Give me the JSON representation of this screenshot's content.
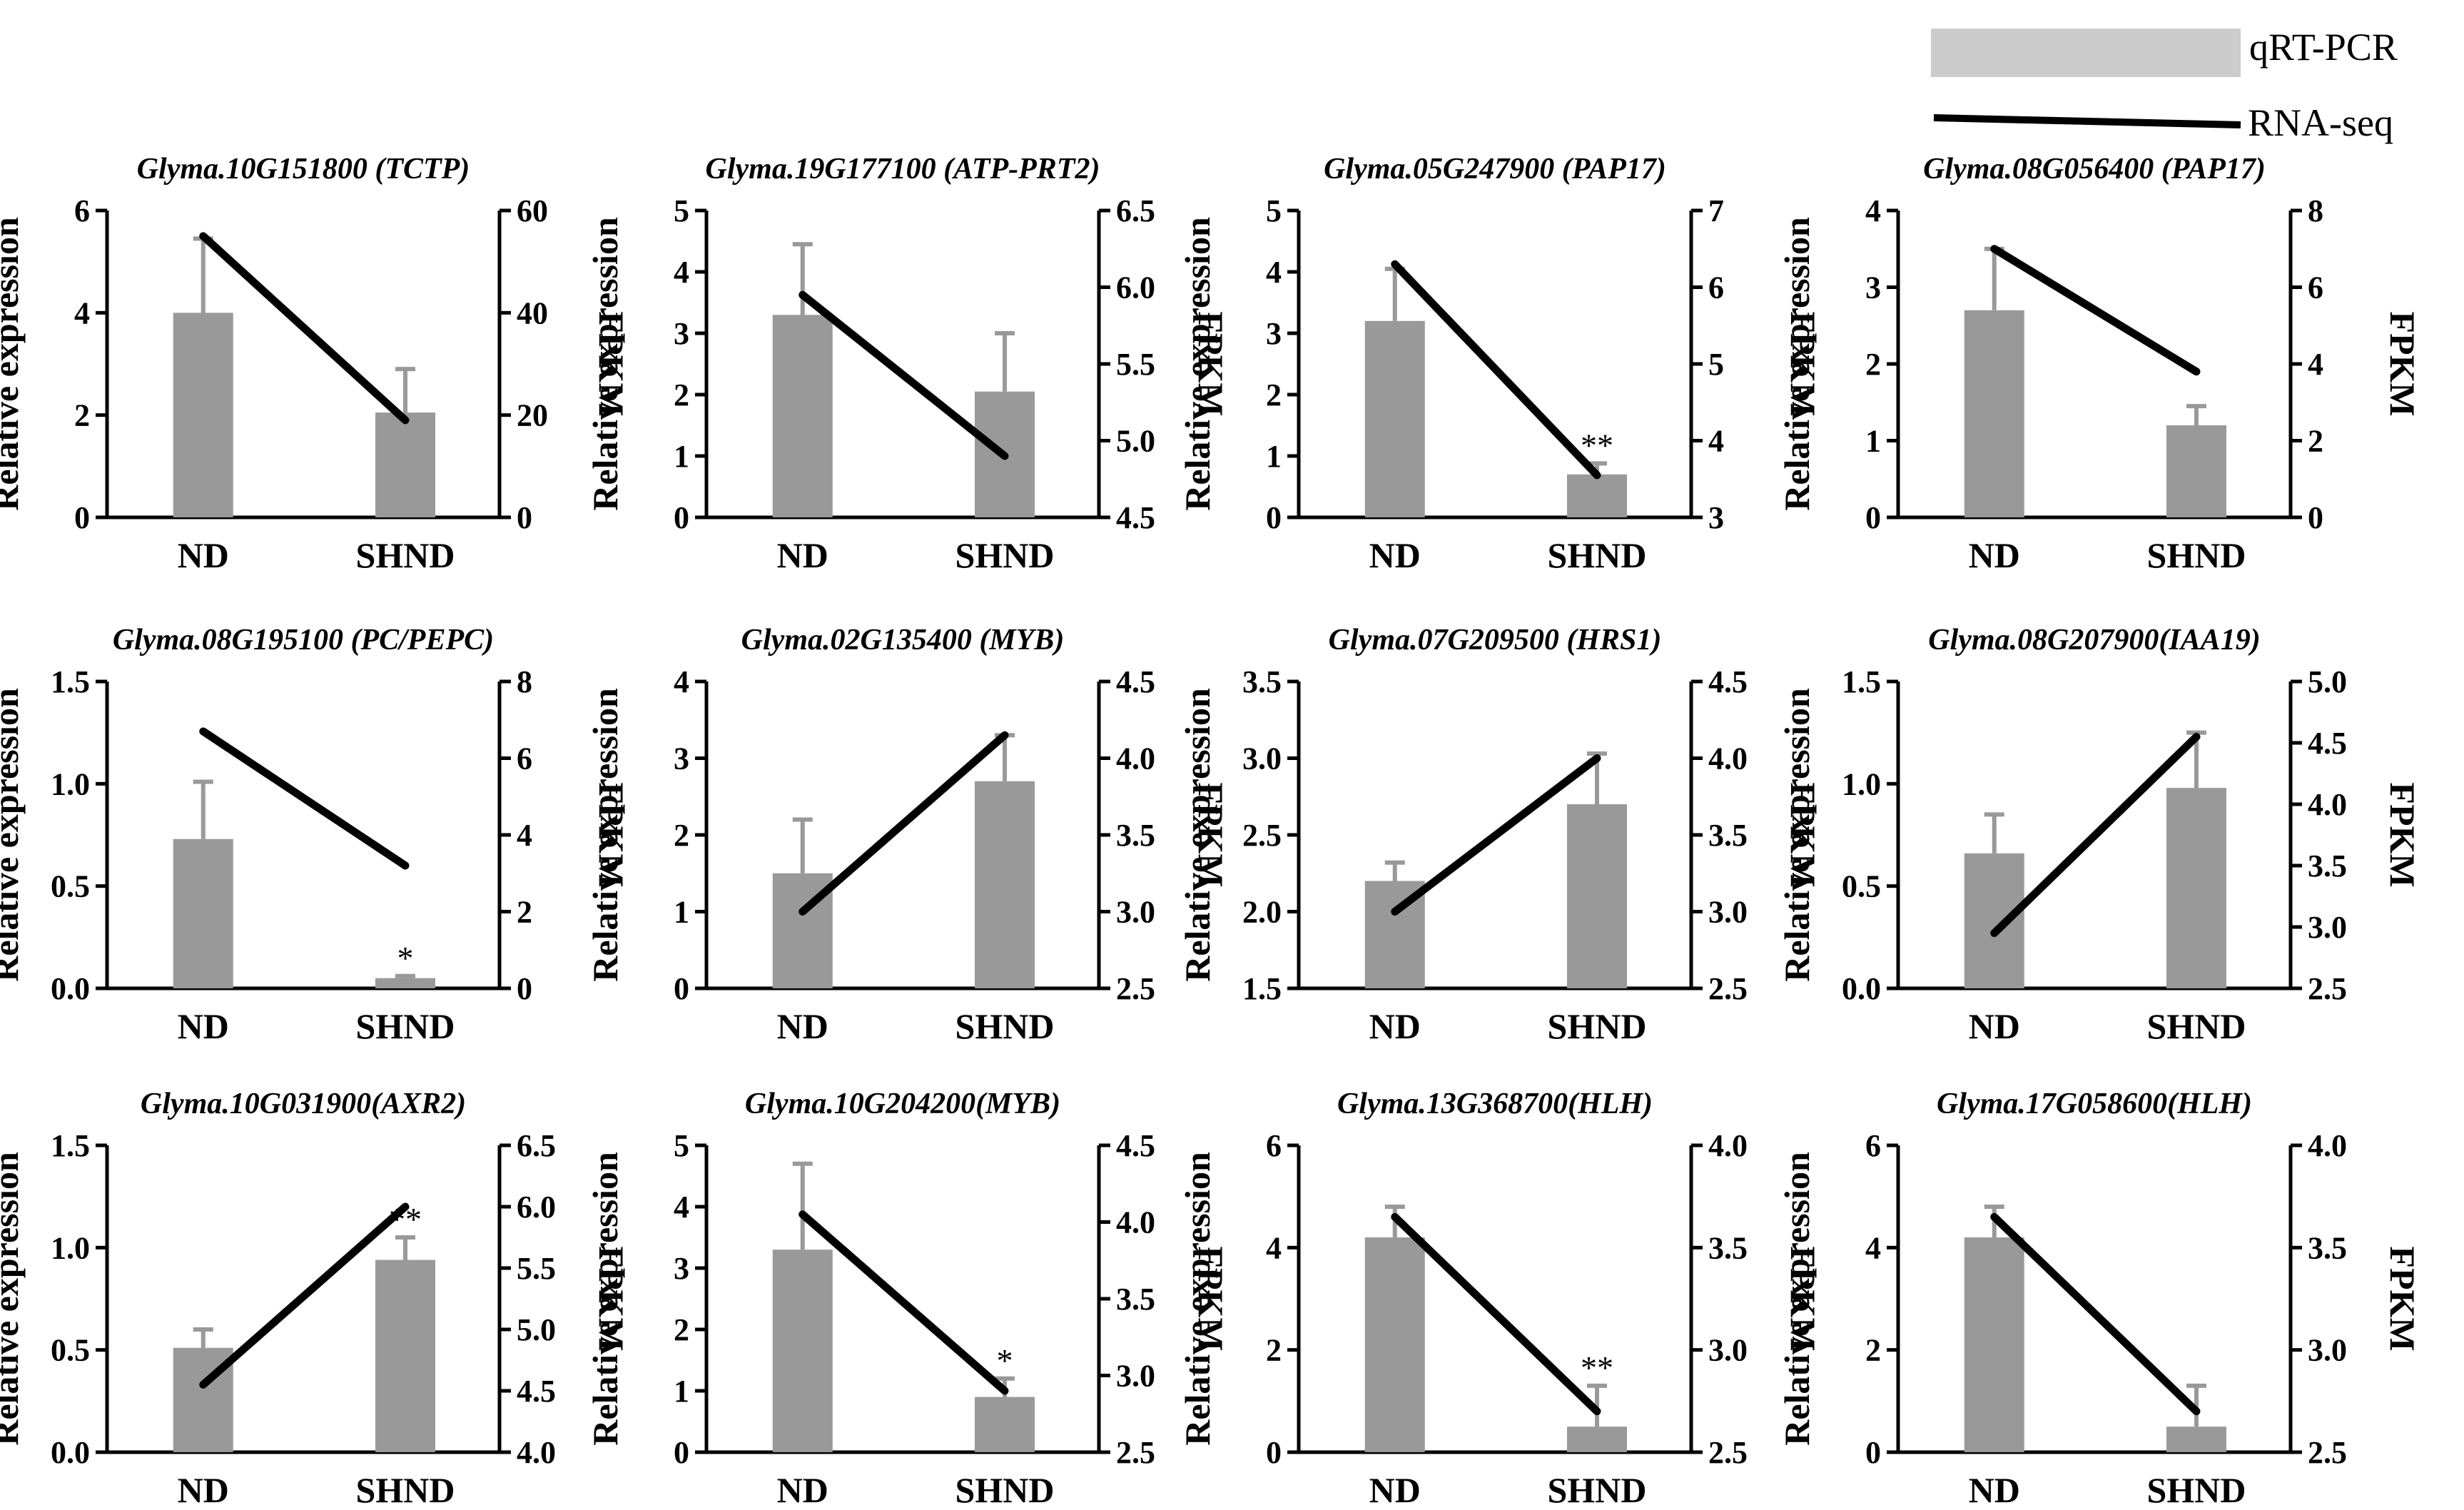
{
  "legend": {
    "qpcr_label": "qRT-PCR",
    "rnaseq_label": "RNA-seq",
    "bar_color": "#999999",
    "legend_bar_color": "#cccccc",
    "line_color": "#000000"
  },
  "chart_data": [
    {
      "type": "bar",
      "title": "Glyma.10G151800 (TCTP)",
      "categories": [
        "ND",
        "SHND"
      ],
      "ylabel": "Relative expression",
      "y2label": "FPKM",
      "ylim": [
        0,
        6
      ],
      "yticks": [
        "0",
        "2",
        "4",
        "6"
      ],
      "y2lim": [
        0,
        60
      ],
      "y2ticks": [
        "0",
        "20",
        "40",
        "60"
      ],
      "values": [
        4.0,
        2.05
      ],
      "errors": [
        1.45,
        0.85
      ],
      "fpkm": [
        55,
        19
      ],
      "sig": [
        "",
        ""
      ]
    },
    {
      "type": "bar",
      "title": "Glyma.19G177100 (ATP-PRT2)",
      "categories": [
        "ND",
        "SHND"
      ],
      "ylabel": "Relative expression",
      "y2label": "FPKM",
      "ylim": [
        0,
        5
      ],
      "yticks": [
        "0",
        "1",
        "2",
        "3",
        "4",
        "5"
      ],
      "y2lim": [
        4.5,
        6.5
      ],
      "y2ticks": [
        "4.5",
        "5.0",
        "5.5",
        "6.0",
        "6.5"
      ],
      "values": [
        3.3,
        2.05
      ],
      "errors": [
        1.15,
        0.95
      ],
      "fpkm": [
        5.95,
        4.9
      ],
      "sig": [
        "",
        ""
      ]
    },
    {
      "type": "bar",
      "title": "Glyma.05G247900 (PAP17)",
      "categories": [
        "ND",
        "SHND"
      ],
      "ylabel": "Relative expression",
      "y2label": "FPKM",
      "ylim": [
        0,
        5
      ],
      "yticks": [
        "0",
        "1",
        "2",
        "3",
        "4",
        "5"
      ],
      "y2lim": [
        3,
        7
      ],
      "y2ticks": [
        "3",
        "4",
        "5",
        "6",
        "7"
      ],
      "values": [
        3.2,
        0.7
      ],
      "errors": [
        0.85,
        0.18
      ],
      "fpkm": [
        6.3,
        3.55
      ],
      "sig": [
        "",
        "**"
      ]
    },
    {
      "type": "bar",
      "title": "Glyma.08G056400 (PAP17)",
      "categories": [
        "ND",
        "SHND"
      ],
      "ylabel": "Relative expression",
      "y2label": "FPKM",
      "ylim": [
        0,
        4
      ],
      "yticks": [
        "0",
        "1",
        "2",
        "3",
        "4"
      ],
      "y2lim": [
        0,
        8
      ],
      "y2ticks": [
        "0",
        "2",
        "4",
        "6",
        "8"
      ],
      "values": [
        2.7,
        1.2
      ],
      "errors": [
        0.8,
        0.25
      ],
      "fpkm": [
        7.0,
        3.8
      ],
      "sig": [
        "",
        ""
      ]
    },
    {
      "type": "bar",
      "title": "Glyma.08G195100 (PC/PEPC)",
      "categories": [
        "ND",
        "SHND"
      ],
      "ylabel": "Relative expression",
      "y2label": "FPKM",
      "ylim": [
        0,
        1.5
      ],
      "yticks": [
        "0.0",
        "0.5",
        "1.0",
        "1.5"
      ],
      "y2lim": [
        0,
        8
      ],
      "y2ticks": [
        "0",
        "2",
        "4",
        "6",
        "8"
      ],
      "values": [
        0.73,
        0.05
      ],
      "errors": [
        0.28,
        0.01
      ],
      "fpkm": [
        6.7,
        3.2
      ],
      "sig": [
        "",
        "*"
      ]
    },
    {
      "type": "bar",
      "title": "Glyma.02G135400 (MYB)",
      "categories": [
        "ND",
        "SHND"
      ],
      "ylabel": "Relative expression",
      "y2label": "FPKM",
      "ylim": [
        0,
        4
      ],
      "yticks": [
        "0",
        "1",
        "2",
        "3",
        "4"
      ],
      "y2lim": [
        2.5,
        4.5
      ],
      "y2ticks": [
        "2.5",
        "3.0",
        "3.5",
        "4.0",
        "4.5"
      ],
      "values": [
        1.5,
        2.7
      ],
      "errors": [
        0.7,
        0.6
      ],
      "fpkm": [
        3.0,
        4.15
      ],
      "sig": [
        "",
        ""
      ]
    },
    {
      "type": "bar",
      "title": "Glyma.07G209500 (HRS1)",
      "categories": [
        "ND",
        "SHND"
      ],
      "ylabel": "Relative expression",
      "y2label": "FPKM",
      "ylim": [
        1.5,
        3.5
      ],
      "yticks": [
        "1.5",
        "2.0",
        "2.5",
        "3.0",
        "3.5"
      ],
      "y2lim": [
        2.5,
        4.5
      ],
      "y2ticks": [
        "2.5",
        "3.0",
        "3.5",
        "4.0",
        "4.5"
      ],
      "values": [
        2.2,
        2.7
      ],
      "errors": [
        0.12,
        0.33
      ],
      "fpkm": [
        3.0,
        4.0
      ],
      "sig": [
        "",
        ""
      ]
    },
    {
      "type": "bar",
      "title": "Glyma.08G207900(IAA19)",
      "categories": [
        "ND",
        "SHND"
      ],
      "ylabel": "Relative expression",
      "y2label": "FPKM",
      "ylim": [
        0,
        1.5
      ],
      "yticks": [
        "0.0",
        "0.5",
        "1.0",
        "1.5"
      ],
      "y2lim": [
        2.5,
        5.0
      ],
      "y2ticks": [
        "2.5",
        "3.0",
        "3.5",
        "4.0",
        "4.5",
        "5.0"
      ],
      "values": [
        0.66,
        0.98
      ],
      "errors": [
        0.19,
        0.27
      ],
      "fpkm": [
        2.95,
        4.55
      ],
      "sig": [
        "",
        ""
      ]
    },
    {
      "type": "bar",
      "title": "Glyma.10G031900(AXR2)",
      "categories": [
        "ND",
        "SHND"
      ],
      "ylabel": "Relative expression",
      "y2label": "FPKM",
      "ylim": [
        0,
        1.5
      ],
      "yticks": [
        "0.0",
        "0.5",
        "1.0",
        "1.5"
      ],
      "y2lim": [
        4.0,
        6.5
      ],
      "y2ticks": [
        "4.0",
        "4.5",
        "5.0",
        "5.5",
        "6.0",
        "6.5"
      ],
      "values": [
        0.51,
        0.94
      ],
      "errors": [
        0.09,
        0.11
      ],
      "fpkm": [
        4.55,
        6.0
      ],
      "sig": [
        "",
        "**"
      ]
    },
    {
      "type": "bar",
      "title": "Glyma.10G204200(MYB)",
      "categories": [
        "ND",
        "SHND"
      ],
      "ylabel": "Relative expression",
      "y2label": "FPKM",
      "ylim": [
        0,
        5
      ],
      "yticks": [
        "0",
        "1",
        "2",
        "3",
        "4",
        "5"
      ],
      "y2lim": [
        2.5,
        4.5
      ],
      "y2ticks": [
        "2.5",
        "3.0",
        "3.5",
        "4.0",
        "4.5"
      ],
      "values": [
        3.3,
        0.9
      ],
      "errors": [
        1.4,
        0.3
      ],
      "fpkm": [
        4.05,
        2.9
      ],
      "sig": [
        "",
        "*"
      ]
    },
    {
      "type": "bar",
      "title": "Glyma.13G368700(HLH)",
      "categories": [
        "ND",
        "SHND"
      ],
      "ylabel": "Relative expression",
      "y2label": "FPKM",
      "ylim": [
        0,
        6
      ],
      "yticks": [
        "0",
        "2",
        "4",
        "6"
      ],
      "y2lim": [
        2.5,
        4.0
      ],
      "y2ticks": [
        "2.5",
        "3.0",
        "3.5",
        "4.0"
      ],
      "values": [
        4.2,
        0.5
      ],
      "errors": [
        0.6,
        0.8
      ],
      "fpkm": [
        3.65,
        2.7
      ],
      "sig": [
        "",
        "**"
      ]
    },
    {
      "type": "bar",
      "title": "Glyma.17G058600(HLH)",
      "categories": [
        "ND",
        "SHND"
      ],
      "ylabel": "Relative expression",
      "y2label": "FPKM",
      "ylim": [
        0,
        6
      ],
      "yticks": [
        "0",
        "2",
        "4",
        "6"
      ],
      "y2lim": [
        2.5,
        4.0
      ],
      "y2ticks": [
        "2.5",
        "3.0",
        "3.5",
        "4.0"
      ],
      "values": [
        4.2,
        0.5
      ],
      "errors": [
        0.6,
        0.8
      ],
      "fpkm": [
        3.65,
        2.7
      ],
      "sig": [
        "",
        ""
      ]
    }
  ]
}
